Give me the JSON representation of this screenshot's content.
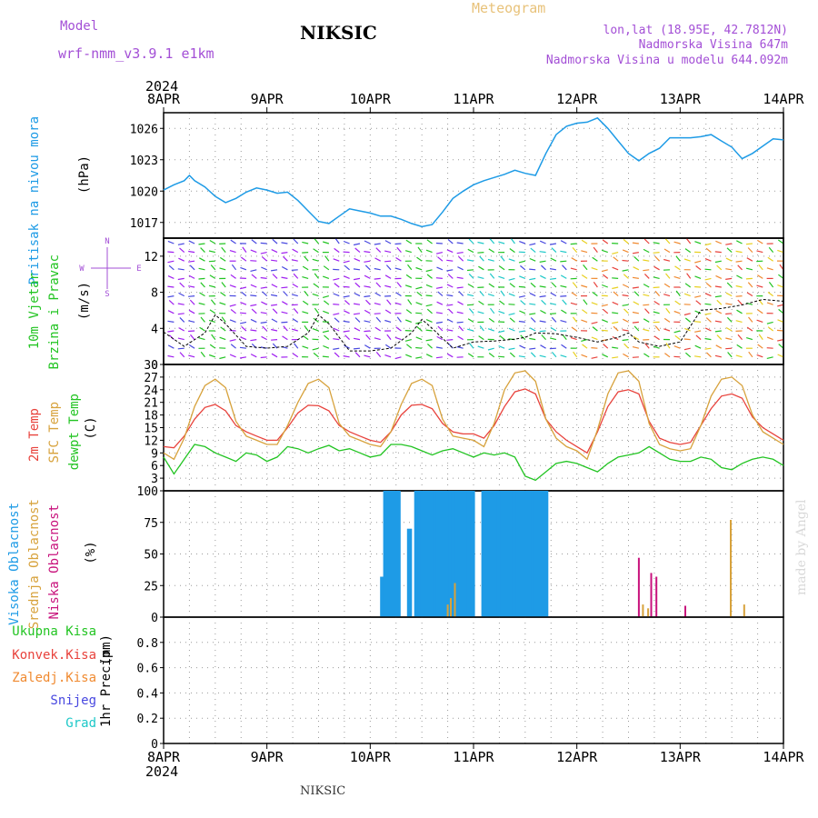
{
  "header": {
    "model_label": "Model",
    "model_name": "wrf-nmm_v3.9.1 e1km",
    "station": "NIKSIC",
    "title": "Meteogram",
    "coords": "lon,lat (18.95E, 42.7812N)",
    "altitude": "Nadmorska Visina 647m",
    "model_altitude": "Nadmorska Visina u modelu 644.092m",
    "footer_station": "NIKSIC",
    "watermark": "made by Angel"
  },
  "colors": {
    "pressure": "#1e9be6",
    "temp_2m": "#e8423c",
    "temp_sfc": "#d7a23c",
    "dewpoint": "#22c422",
    "cloud_high": "#1e9be6",
    "cloud_mid": "#d7a23c",
    "cloud_low": "#c8127c",
    "purple": "#a34fd6",
    "green": "#22c422",
    "orange": "#f08a30",
    "blue": "#4848e0",
    "cyan": "#1ec8c8"
  },
  "chart_data": [
    {
      "type": "line",
      "panel": "pressure",
      "ylabel": [
        "Pritisak na nivou mora",
        "(hPa)"
      ],
      "ylim": [
        1015.5,
        1027.5
      ],
      "yticks": [
        1017,
        1020,
        1023,
        1026
      ],
      "x_days": [
        0,
        0.1,
        0.2,
        0.25,
        0.3,
        0.4,
        0.5,
        0.6,
        0.7,
        0.8,
        0.9,
        1.0,
        1.1,
        1.2,
        1.3,
        1.4,
        1.5,
        1.6,
        1.7,
        1.8,
        1.9,
        2.0,
        2.1,
        2.2,
        2.3,
        2.4,
        2.5,
        2.6,
        2.7,
        2.8,
        2.9,
        3.0,
        3.1,
        3.2,
        3.3,
        3.4,
        3.5,
        3.6,
        3.7,
        3.8,
        3.9,
        4.0,
        4.1,
        4.2,
        4.3,
        4.4,
        4.5,
        4.6,
        4.7,
        4.8,
        4.9,
        5.0,
        5.1,
        5.2,
        5.3,
        5.4,
        5.5,
        5.6,
        5.7,
        5.8,
        5.9,
        6.0
      ],
      "series": [
        {
          "values": [
            1020.1,
            1020.6,
            1021.0,
            1021.5,
            1021.0,
            1020.4,
            1019.5,
            1018.9,
            1019.3,
            1019.9,
            1020.3,
            1020.1,
            1019.8,
            1019.9,
            1019.1,
            1018.1,
            1017.1,
            1016.9,
            1017.6,
            1018.3,
            1018.1,
            1017.9,
            1017.6,
            1017.6,
            1017.3,
            1016.9,
            1016.6,
            1016.8,
            1018.0,
            1019.3,
            1020.0,
            1020.6,
            1021.0,
            1021.3,
            1021.6,
            1022.0,
            1021.7,
            1021.5,
            1023.6,
            1025.4,
            1026.2,
            1026.5,
            1026.6,
            1027.0,
            1026.0,
            1024.8,
            1023.6,
            1022.9,
            1023.6,
            1024.1,
            1025.1,
            1025.1,
            1025.1,
            1025.2,
            1025.4,
            1024.8,
            1024.2,
            1023.1,
            1023.6,
            1024.3,
            1025.0,
            1024.9
          ]
        }
      ]
    },
    {
      "type": "line",
      "panel": "wind",
      "ylabel": [
        "10m Vjetar",
        "Brzina i Pravac",
        "(m/s)"
      ],
      "ylim": [
        0,
        14
      ],
      "yticks": [
        0,
        4,
        8,
        12
      ],
      "compass": {
        "n": "N",
        "s": "S",
        "e": "E",
        "w": "W"
      },
      "x_days": [
        0,
        0.2,
        0.4,
        0.5,
        0.6,
        0.8,
        1.0,
        1.2,
        1.4,
        1.5,
        1.6,
        1.8,
        2.0,
        2.2,
        2.4,
        2.5,
        2.6,
        2.8,
        3.0,
        3.2,
        3.4,
        3.5,
        3.6,
        3.8,
        4.0,
        4.2,
        4.4,
        4.5,
        4.6,
        4.8,
        5.0,
        5.2,
        5.4,
        5.6,
        5.8,
        6.0
      ],
      "series": [
        {
          "name": "10m",
          "values": [
            3.6,
            2.0,
            3.5,
            5.5,
            4.5,
            2.0,
            1.8,
            2.0,
            3.5,
            5.5,
            4.5,
            1.5,
            1.5,
            1.8,
            3.5,
            5.0,
            4.0,
            1.8,
            2.5,
            2.6,
            2.8,
            3.0,
            3.5,
            3.4,
            3.0,
            2.5,
            3.0,
            3.5,
            2.5,
            2.0,
            2.5,
            6.0,
            6.2,
            6.6,
            7.2,
            7.0
          ]
        }
      ],
      "columns": 61
    },
    {
      "type": "line",
      "panel": "temperature",
      "ylabel": [
        "2m Temp",
        "SFC Temp",
        "dewpt Temp",
        "(C)"
      ],
      "ylim": [
        0,
        30
      ],
      "yticks": [
        3,
        6,
        9,
        12,
        15,
        18,
        21,
        24,
        27,
        30
      ],
      "x_days": [
        0,
        0.1,
        0.2,
        0.3,
        0.4,
        0.5,
        0.6,
        0.7,
        0.8,
        0.9,
        1.0,
        1.1,
        1.2,
        1.3,
        1.4,
        1.5,
        1.6,
        1.7,
        1.8,
        1.9,
        2.0,
        2.1,
        2.2,
        2.3,
        2.4,
        2.5,
        2.6,
        2.7,
        2.8,
        2.9,
        3.0,
        3.1,
        3.2,
        3.3,
        3.4,
        3.5,
        3.6,
        3.7,
        3.8,
        3.9,
        4.0,
        4.1,
        4.2,
        4.3,
        4.4,
        4.5,
        4.6,
        4.7,
        4.8,
        4.9,
        5.0,
        5.1,
        5.2,
        5.3,
        5.4,
        5.5,
        5.6,
        5.7,
        5.8,
        5.9,
        6.0
      ],
      "series": [
        {
          "name": "2m Temp",
          "values": [
            10.5,
            10.2,
            13.0,
            17.0,
            19.8,
            20.5,
            19.0,
            15.5,
            14.0,
            13.0,
            12.0,
            12.0,
            15.0,
            18.5,
            20.3,
            20.2,
            19.0,
            15.5,
            14.0,
            13.0,
            12.0,
            11.5,
            14.0,
            18.0,
            20.3,
            20.5,
            19.5,
            16.0,
            14.0,
            13.5,
            13.5,
            12.5,
            15.5,
            20.0,
            23.5,
            24.2,
            23.0,
            17.0,
            14.0,
            12.0,
            10.5,
            9.0,
            14.0,
            20.0,
            23.5,
            24.0,
            23.0,
            16.5,
            12.5,
            11.5,
            11.0,
            11.5,
            15.5,
            19.5,
            22.5,
            23.0,
            22.0,
            17.5,
            15.0,
            13.5,
            12.0
          ]
        },
        {
          "name": "SFC Temp",
          "values": [
            9.0,
            7.5,
            12.5,
            20.0,
            25.0,
            26.5,
            24.5,
            16.5,
            13.0,
            12.0,
            11.0,
            11.0,
            15.5,
            21.0,
            25.5,
            26.5,
            24.5,
            16.0,
            13.0,
            12.0,
            11.0,
            10.5,
            14.0,
            20.5,
            25.5,
            26.5,
            25.0,
            17.0,
            13.0,
            12.5,
            12.0,
            10.5,
            16.0,
            24.0,
            28.0,
            28.5,
            26.0,
            17.0,
            12.5,
            10.5,
            9.5,
            7.5,
            14.5,
            23.0,
            28.0,
            28.5,
            26.0,
            16.0,
            11.0,
            10.0,
            9.5,
            10.0,
            15.5,
            22.5,
            26.5,
            27.0,
            25.0,
            18.0,
            14.0,
            12.5,
            11.0
          ]
        },
        {
          "name": "dewpt Temp",
          "values": [
            8.0,
            4.0,
            7.5,
            11.0,
            10.5,
            9.0,
            8.0,
            7.0,
            9.0,
            8.5,
            7.0,
            8.0,
            10.5,
            10.0,
            9.0,
            10.0,
            10.8,
            9.5,
            10.0,
            9.0,
            8.0,
            8.5,
            11.0,
            11.0,
            10.5,
            9.5,
            8.5,
            9.5,
            10.0,
            9.0,
            8.0,
            9.0,
            8.5,
            9.0,
            8.0,
            3.5,
            2.5,
            4.5,
            6.5,
            7.0,
            6.5,
            5.5,
            4.5,
            6.5,
            8.0,
            8.5,
            9.0,
            10.5,
            9.0,
            7.5,
            7.0,
            7.0,
            8.0,
            7.5,
            5.5,
            5.0,
            6.5,
            7.5,
            8.0,
            7.5,
            6.0
          ]
        }
      ]
    },
    {
      "type": "bar",
      "panel": "clouds",
      "ylabel": [
        "Visoka Oblacnost",
        "Srednja Oblacnost",
        "Niska Oblacnost",
        "(%)"
      ],
      "ylim": [
        0,
        100
      ],
      "yticks": [
        0,
        25,
        50,
        75,
        100
      ],
      "series": [
        {
          "name": "Visoka Oblacnost",
          "x_days": [
            2.12,
            2.15,
            2.18,
            2.21,
            2.24,
            2.27,
            2.38,
            2.45,
            2.48,
            2.51,
            2.54,
            2.57,
            2.6,
            2.63,
            2.66,
            2.69,
            2.72,
            2.75,
            2.78,
            2.81,
            2.84,
            2.87,
            2.9,
            2.93,
            2.96,
            2.99,
            3.1,
            3.13,
            3.16,
            3.19,
            3.22,
            3.25,
            3.28,
            3.31,
            3.34,
            3.37,
            3.4,
            3.43,
            3.46,
            3.49,
            3.52,
            3.55,
            3.58,
            3.61,
            3.64,
            3.67,
            3.7
          ],
          "values": [
            32,
            100,
            100,
            100,
            100,
            100,
            70,
            100,
            100,
            100,
            100,
            100,
            100,
            100,
            100,
            100,
            100,
            100,
            100,
            100,
            100,
            100,
            100,
            100,
            100,
            100,
            100,
            100,
            100,
            100,
            100,
            100,
            100,
            100,
            100,
            100,
            100,
            100,
            100,
            100,
            100,
            100,
            100,
            100,
            100,
            100,
            100
          ]
        },
        {
          "name": "Srednja Oblacnost",
          "x_days": [
            2.75,
            2.78,
            2.82,
            4.64,
            4.69,
            5.49,
            5.62
          ],
          "values": [
            10,
            15,
            27,
            10,
            7,
            77,
            10
          ]
        },
        {
          "name": "Niska Oblacnost",
          "x_days": [
            4.6,
            4.72,
            4.77,
            5.05
          ],
          "values": [
            47,
            35,
            32,
            9
          ]
        }
      ]
    },
    {
      "type": "bar",
      "panel": "precip",
      "ylabel": [
        "1hr Precip",
        "(mm)"
      ],
      "ylim": [
        0,
        1
      ],
      "yticks": [
        0,
        0.2,
        0.4,
        0.6,
        0.8
      ],
      "legend": [
        "Ukupna Kisa",
        "Konvek.Kisa",
        "Zaledj.Kisa",
        "Snijeg",
        "Grad"
      ],
      "series": []
    }
  ],
  "x_axis": {
    "labels": [
      "8APR",
      "9APR",
      "10APR",
      "11APR",
      "12APR",
      "13APR",
      "14APR"
    ],
    "year": "2024"
  }
}
